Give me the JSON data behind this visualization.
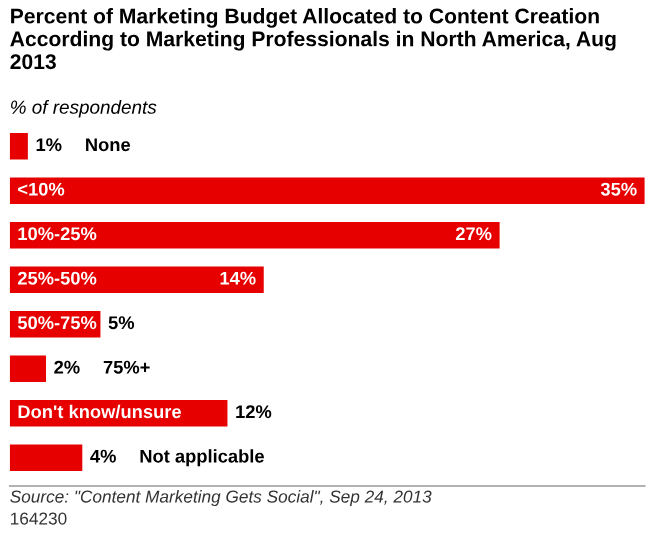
{
  "chart_data": {
    "type": "bar",
    "orientation": "horizontal",
    "title": "Percent of Marketing Budget Allocated to Content Creation According to Marketing Professionals in North America, Aug 2013",
    "subtitle": "% of respondents",
    "categories": [
      "None",
      "<10%",
      "10%-25%",
      "25%-50%",
      "50%-75%",
      "75%+",
      "Don't know/unsure",
      "Not applicable"
    ],
    "values": [
      1,
      35,
      27,
      14,
      5,
      2,
      12,
      4
    ],
    "value_labels": [
      "1%",
      "35%",
      "27%",
      "14%",
      "5%",
      "2%",
      "12%",
      "4%"
    ],
    "color": "#e60000",
    "annotations": [
      "Source: \"Content Marketing Gets Social\", Sep 24, 2013",
      "164230"
    ]
  }
}
